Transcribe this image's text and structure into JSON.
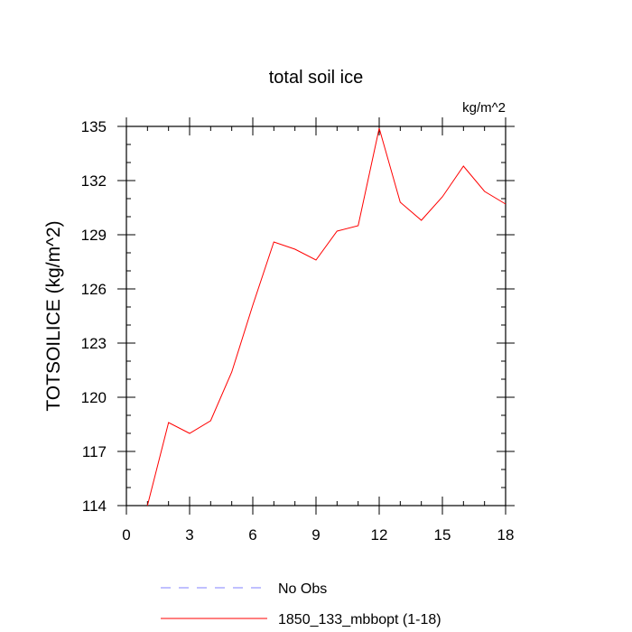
{
  "chart_data": {
    "type": "line",
    "title": "total soil ice",
    "units": "kg/m^2",
    "xlabel": "",
    "ylabel": "TOTSOILICE  (kg/m^2)",
    "xlim": [
      0,
      18
    ],
    "ylim": [
      114,
      135
    ],
    "x_ticks": [
      0,
      3,
      6,
      9,
      12,
      15,
      18
    ],
    "y_ticks": [
      114,
      117,
      120,
      123,
      126,
      129,
      132,
      135
    ],
    "grid": false,
    "legend_position": "bottom",
    "series": [
      {
        "name": "1850_133_mbbopt (1-18)",
        "color": "#ff0000",
        "style": "solid",
        "x": [
          1,
          2,
          3,
          4,
          5,
          6,
          7,
          8,
          9,
          10,
          11,
          12,
          13,
          14,
          15,
          16,
          17,
          18
        ],
        "y": [
          114.0,
          118.6,
          118.0,
          118.7,
          121.4,
          125.1,
          128.6,
          128.2,
          127.6,
          129.2,
          129.5,
          134.9,
          130.8,
          129.8,
          131.1,
          132.8,
          131.4,
          130.7
        ]
      }
    ],
    "legend": [
      {
        "label": "No Obs",
        "color": "#8080ff",
        "style": "dashed"
      },
      {
        "label": "1850_133_mbbopt (1-18)",
        "color": "#ff0000",
        "style": "solid"
      }
    ]
  }
}
